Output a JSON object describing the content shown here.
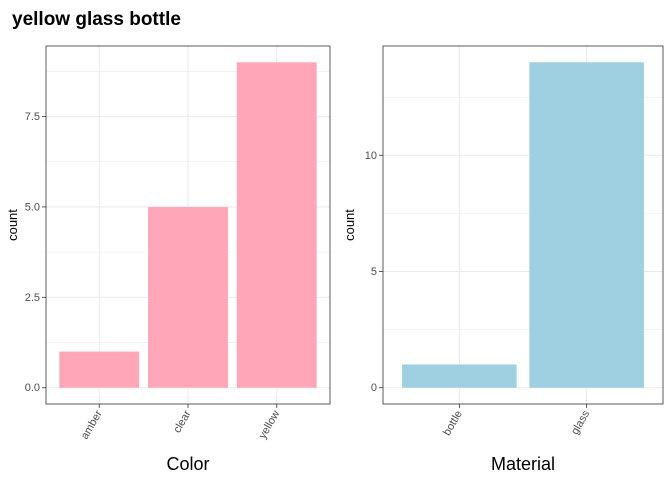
{
  "title": "yellow glass bottle",
  "colors": {
    "pink": "#ffa7b8",
    "blue": "#9ed0e1",
    "grid": "#ebebeb",
    "border": "#333333"
  },
  "chart_data": [
    {
      "type": "bar",
      "title": "",
      "xlabel": "Color",
      "ylabel": "count",
      "categories": [
        "amber",
        "clear",
        "yellow"
      ],
      "values": [
        1,
        5,
        9
      ],
      "ylim": [
        -0.45,
        9.45
      ],
      "yticks": [
        0,
        2.5,
        5,
        7.5
      ],
      "ytick_labels": [
        "0.0",
        "2.5",
        "5.0",
        "7.5"
      ],
      "bar_color": "#ffa7b8",
      "grid": true
    },
    {
      "type": "bar",
      "title": "",
      "xlabel": "Material",
      "ylabel": "count",
      "categories": [
        "bottle",
        "glass"
      ],
      "values": [
        1,
        14
      ],
      "ylim": [
        -0.7,
        14.7
      ],
      "yticks": [
        0,
        5,
        10
      ],
      "ytick_labels": [
        "0",
        "5",
        "10"
      ],
      "bar_color": "#9ed0e1",
      "grid": true
    }
  ]
}
